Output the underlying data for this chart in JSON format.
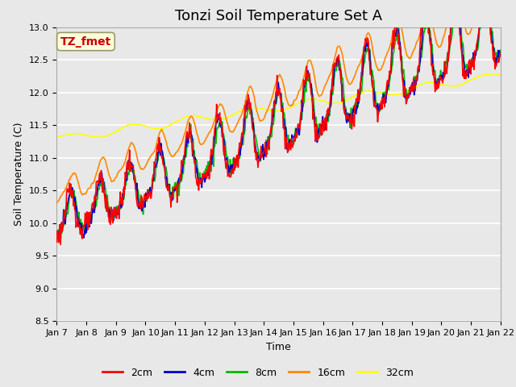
{
  "title": "Tonzi Soil Temperature Set A",
  "xlabel": "Time",
  "ylabel": "Soil Temperature (C)",
  "annotation": "TZ_fmet",
  "annotation_color": "#cc0000",
  "annotation_bg": "#ffffdd",
  "annotation_border": "#999966",
  "ylim": [
    8.5,
    13.0
  ],
  "yticks": [
    8.5,
    9.0,
    9.5,
    10.0,
    10.5,
    11.0,
    11.5,
    12.0,
    12.5,
    13.0
  ],
  "xtick_labels": [
    "Jan 7",
    "Jan 8",
    "Jan 9",
    "Jan 10",
    "Jan 11",
    "Jan 12",
    "Jan 13",
    "Jan 14",
    "Jan 15",
    "Jan 16",
    "Jan 17",
    "Jan 18",
    "Jan 19",
    "Jan 20",
    "Jan 21",
    "Jan 22"
  ],
  "legend_labels": [
    "2cm",
    "4cm",
    "8cm",
    "16cm",
    "32cm"
  ],
  "legend_colors": [
    "#ff0000",
    "#0000cc",
    "#00bb00",
    "#ff8800",
    "#ffff00"
  ],
  "line_width": 1.2,
  "bg_color": "#e8e8e8",
  "grid_color": "#ffffff",
  "title_fontsize": 13,
  "label_fontsize": 9,
  "tick_fontsize": 8,
  "legend_fontsize": 9,
  "days": 15,
  "n_points": 720
}
